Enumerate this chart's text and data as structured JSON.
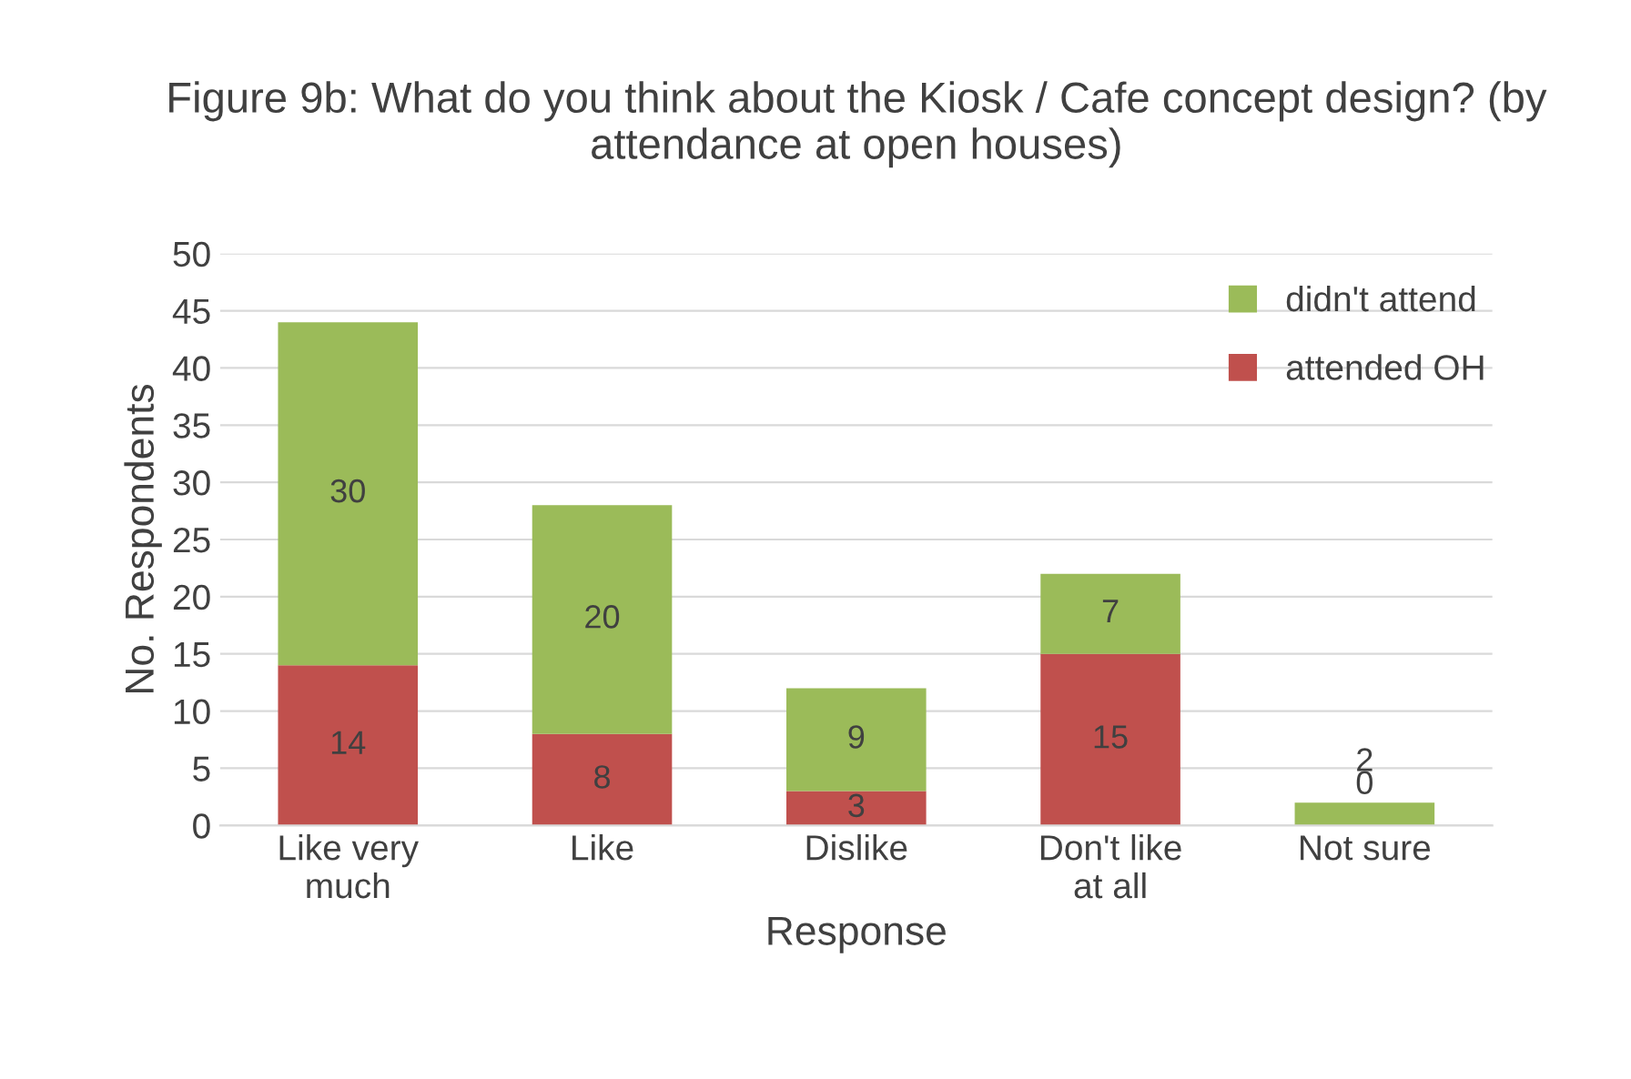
{
  "chart_data": {
    "type": "bar",
    "title": "Figure 9b: What do you think about the Kiosk / Cafe concept design? (by attendance at open houses)",
    "xlabel": "Response",
    "ylabel": "No. Respondents",
    "categories": [
      "Like very much",
      "Like",
      "Dislike",
      "Don't like at all",
      "Not sure"
    ],
    "series": [
      {
        "name": "attended OH",
        "color": "#c0504d",
        "values": [
          14,
          8,
          3,
          15,
          0
        ]
      },
      {
        "name": "didn't attend",
        "color": "#9bbb59",
        "values": [
          30,
          20,
          9,
          7,
          2
        ]
      }
    ],
    "stacked": true,
    "data_labels": true,
    "ylim": [
      0,
      50
    ],
    "yticks": [
      0,
      5,
      10,
      15,
      20,
      25,
      30,
      35,
      40,
      45,
      50
    ],
    "grid": "y",
    "legend": "top right"
  }
}
